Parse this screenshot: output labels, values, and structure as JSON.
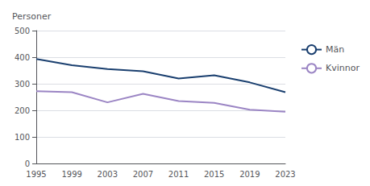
{
  "chart_data": {
    "type": "line",
    "ylabel": "Personer",
    "categories": [
      "1995",
      "1999",
      "2003",
      "2007",
      "2011",
      "2015",
      "2019",
      "2023"
    ],
    "series": [
      {
        "name": "Män",
        "color": "#1a3f6f",
        "values": [
          393,
          370,
          355,
          347,
          320,
          332,
          305,
          268
        ]
      },
      {
        "name": "Kvinnor",
        "color": "#9b85c4",
        "values": [
          272,
          268,
          230,
          262,
          235,
          228,
          202,
          195
        ]
      }
    ],
    "ylim": [
      0,
      500
    ],
    "yticks": [
      0,
      100,
      200,
      300,
      400,
      500
    ],
    "grid": true,
    "legend": "right"
  }
}
